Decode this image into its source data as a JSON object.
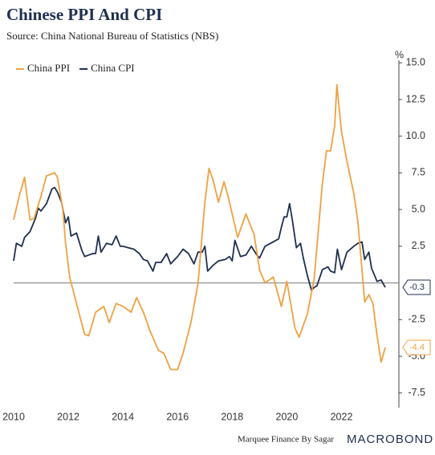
{
  "chart_data": {
    "type": "line",
    "title": "Chinese PPI And CPI",
    "subtitle": "Source: China National Bureau of Statistics (NBS)",
    "y_unit": "%",
    "footer": "Marquee Finance By Sagar",
    "brand": "MACROBOND",
    "xlim": [
      2010,
      2024.1
    ],
    "xticks": [
      2010,
      2012,
      2014,
      2016,
      2018,
      2020,
      2022
    ],
    "ylim": [
      -8.5,
      16
    ],
    "yticks": [
      {
        "value": -7.5,
        "label": "-7.5"
      },
      {
        "value": -5,
        "label": "-5.0"
      },
      {
        "value": -2.5,
        "label": "-2.5"
      },
      {
        "value": 2.5,
        "label": "2.5"
      },
      {
        "value": 5,
        "label": "5.0"
      },
      {
        "value": 7.5,
        "label": "7.5"
      },
      {
        "value": 10,
        "label": "10.0"
      },
      {
        "value": 12.5,
        "label": "12.5"
      },
      {
        "value": 15,
        "label": "15.0"
      }
    ],
    "zero_line": true,
    "legend": "top-left",
    "series": [
      {
        "name": "China PPI",
        "color": "#f0a040",
        "end_label": "-4.4",
        "x": [
          2010.0,
          2010.2,
          2010.4,
          2010.6,
          2010.75,
          2011.0,
          2011.2,
          2011.5,
          2011.6,
          2011.8,
          2011.9,
          2012.05,
          2012.3,
          2012.6,
          2012.75,
          2013.0,
          2013.3,
          2013.5,
          2013.75,
          2014.0,
          2014.3,
          2014.5,
          2014.75,
          2015.0,
          2015.3,
          2015.5,
          2015.75,
          2016.0,
          2016.2,
          2016.5,
          2016.75,
          2017.0,
          2017.15,
          2017.3,
          2017.5,
          2017.7,
          2017.85,
          2018.0,
          2018.2,
          2018.5,
          2018.8,
          2019.0,
          2019.2,
          2019.5,
          2019.8,
          2020.0,
          2020.3,
          2020.45,
          2020.75,
          2021.0,
          2021.3,
          2021.45,
          2021.6,
          2021.75,
          2021.83,
          2022.0,
          2022.2,
          2022.45,
          2022.6,
          2022.75,
          2022.85,
          2023.0,
          2023.15,
          2023.3,
          2023.45,
          2023.6
        ],
        "values": [
          4.3,
          5.9,
          7.2,
          4.3,
          4.4,
          5.9,
          7.3,
          7.5,
          7.2,
          5.0,
          2.7,
          0.4,
          -1.4,
          -3.5,
          -3.6,
          -2.0,
          -1.6,
          -2.7,
          -1.4,
          -1.6,
          -2.0,
          -1.0,
          -2.0,
          -3.3,
          -4.6,
          -4.8,
          -5.9,
          -5.9,
          -4.8,
          -2.6,
          0.0,
          5.5,
          7.8,
          7.0,
          5.5,
          6.9,
          5.9,
          4.7,
          3.1,
          4.7,
          3.3,
          0.9,
          0.0,
          0.4,
          -1.6,
          0.1,
          -3.1,
          -3.7,
          -2.1,
          0.3,
          6.8,
          9.0,
          9.0,
          10.7,
          13.5,
          10.3,
          8.3,
          6.1,
          4.2,
          0.9,
          -1.3,
          -0.8,
          -1.4,
          -3.6,
          -5.4,
          -4.4
        ]
      },
      {
        "name": "China CPI",
        "color": "#1f2f50",
        "end_label": "-0.3",
        "x": [
          2010.0,
          2010.1,
          2010.3,
          2010.4,
          2010.6,
          2010.8,
          2010.9,
          2011.0,
          2011.2,
          2011.4,
          2011.5,
          2011.6,
          2011.75,
          2011.9,
          2012.0,
          2012.1,
          2012.3,
          2012.5,
          2012.6,
          2012.75,
          2012.9,
          2013.0,
          2013.1,
          2013.2,
          2013.4,
          2013.6,
          2013.75,
          2013.9,
          2014.0,
          2014.2,
          2014.4,
          2014.6,
          2014.75,
          2014.9,
          2015.1,
          2015.2,
          2015.4,
          2015.6,
          2015.75,
          2015.9,
          2016.0,
          2016.2,
          2016.4,
          2016.6,
          2016.75,
          2016.9,
          2017.0,
          2017.1,
          2017.3,
          2017.5,
          2017.75,
          2017.9,
          2018.0,
          2018.1,
          2018.3,
          2018.5,
          2018.7,
          2018.9,
          2019.0,
          2019.2,
          2019.5,
          2019.7,
          2019.8,
          2019.9,
          2020.0,
          2020.1,
          2020.2,
          2020.35,
          2020.5,
          2020.6,
          2020.75,
          2020.9,
          2021.0,
          2021.1,
          2021.3,
          2021.5,
          2021.6,
          2021.75,
          2021.85,
          2022.0,
          2022.2,
          2022.45,
          2022.6,
          2022.75,
          2022.85,
          2023.0,
          2023.1,
          2023.3,
          2023.45,
          2023.6
        ],
        "values": [
          1.5,
          2.7,
          2.5,
          3.1,
          3.5,
          4.4,
          5.1,
          4.9,
          5.4,
          6.4,
          6.5,
          6.2,
          5.5,
          4.1,
          4.5,
          3.2,
          3.4,
          2.2,
          1.8,
          1.9,
          2.0,
          2.0,
          3.2,
          2.1,
          2.7,
          2.6,
          3.2,
          2.5,
          2.5,
          2.4,
          2.3,
          2.0,
          1.6,
          1.5,
          0.8,
          1.4,
          1.4,
          2.0,
          1.3,
          1.6,
          1.8,
          2.3,
          2.0,
          1.3,
          2.1,
          2.1,
          2.5,
          0.8,
          1.2,
          1.5,
          1.6,
          1.8,
          1.5,
          2.9,
          1.8,
          1.9,
          2.5,
          1.9,
          1.7,
          2.5,
          2.8,
          3.0,
          3.8,
          4.5,
          4.5,
          5.4,
          4.3,
          2.4,
          2.7,
          1.7,
          0.5,
          -0.5,
          -0.3,
          -0.2,
          0.9,
          1.1,
          0.8,
          0.7,
          2.3,
          0.9,
          2.1,
          2.5,
          2.7,
          2.8,
          1.6,
          2.1,
          1.0,
          0.1,
          0.2,
          -0.3
        ]
      }
    ]
  }
}
